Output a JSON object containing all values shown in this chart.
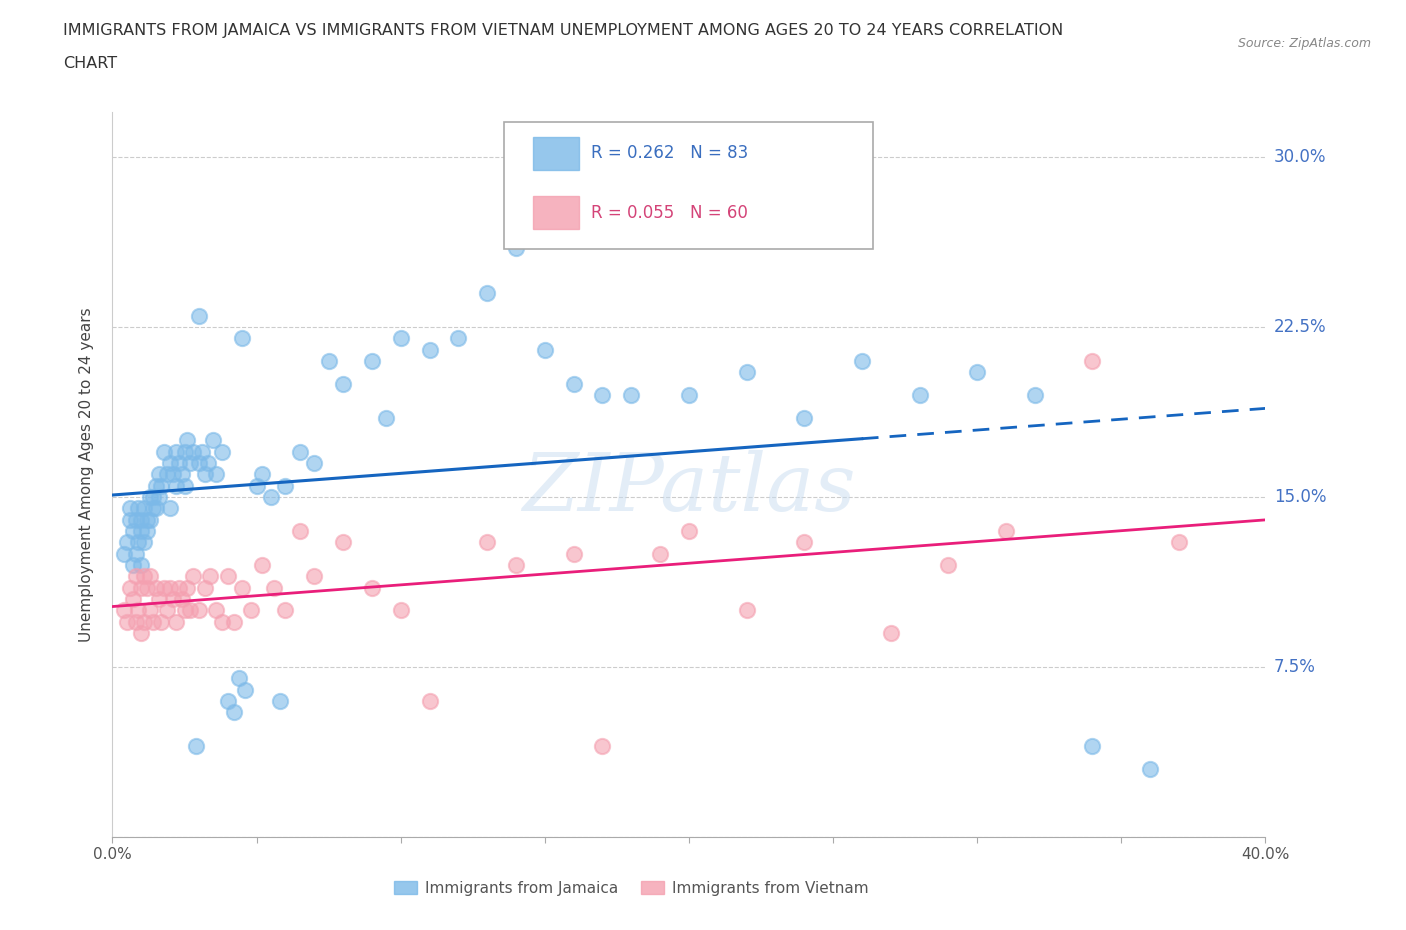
{
  "title_line1": "IMMIGRANTS FROM JAMAICA VS IMMIGRANTS FROM VIETNAM UNEMPLOYMENT AMONG AGES 20 TO 24 YEARS CORRELATION",
  "title_line2": "CHART",
  "source": "Source: ZipAtlas.com",
  "ylabel": "Unemployment Among Ages 20 to 24 years",
  "xlim": [
    0.0,
    0.4
  ],
  "ylim": [
    0.0,
    0.32
  ],
  "xticks": [
    0.0,
    0.05,
    0.1,
    0.15,
    0.2,
    0.25,
    0.3,
    0.35,
    0.4
  ],
  "yticks": [
    0.0,
    0.075,
    0.15,
    0.225,
    0.3
  ],
  "ytick_labels": [
    "",
    "7.5%",
    "15.0%",
    "22.5%",
    "30.0%"
  ],
  "jamaica_color": "#7CB9E8",
  "vietnam_color": "#F4A0B0",
  "jamaica_line_color": "#1565C0",
  "vietnam_line_color": "#E91E7A",
  "jamaica_legend": "Immigrants from Jamaica",
  "vietnam_legend": "Immigrants from Vietnam",
  "watermark": "ZIPatlas",
  "jamaica_scatter_x": [
    0.004,
    0.005,
    0.006,
    0.006,
    0.007,
    0.007,
    0.008,
    0.008,
    0.009,
    0.009,
    0.01,
    0.01,
    0.01,
    0.011,
    0.011,
    0.012,
    0.012,
    0.013,
    0.013,
    0.014,
    0.014,
    0.015,
    0.015,
    0.016,
    0.016,
    0.017,
    0.018,
    0.019,
    0.02,
    0.02,
    0.021,
    0.022,
    0.022,
    0.023,
    0.024,
    0.025,
    0.025,
    0.026,
    0.027,
    0.028,
    0.029,
    0.03,
    0.031,
    0.032,
    0.033,
    0.035,
    0.036,
    0.038,
    0.04,
    0.042,
    0.044,
    0.046,
    0.05,
    0.052,
    0.055,
    0.058,
    0.06,
    0.065,
    0.07,
    0.075,
    0.08,
    0.09,
    0.095,
    0.1,
    0.11,
    0.12,
    0.13,
    0.14,
    0.16,
    0.17,
    0.18,
    0.2,
    0.22,
    0.24,
    0.26,
    0.28,
    0.3,
    0.32,
    0.34,
    0.36,
    0.03,
    0.045,
    0.15
  ],
  "jamaica_scatter_y": [
    0.125,
    0.13,
    0.14,
    0.145,
    0.12,
    0.135,
    0.14,
    0.125,
    0.145,
    0.13,
    0.135,
    0.14,
    0.12,
    0.145,
    0.13,
    0.14,
    0.135,
    0.15,
    0.14,
    0.145,
    0.15,
    0.155,
    0.145,
    0.16,
    0.15,
    0.155,
    0.17,
    0.16,
    0.165,
    0.145,
    0.16,
    0.155,
    0.17,
    0.165,
    0.16,
    0.17,
    0.155,
    0.175,
    0.165,
    0.17,
    0.04,
    0.165,
    0.17,
    0.16,
    0.165,
    0.175,
    0.16,
    0.17,
    0.06,
    0.055,
    0.07,
    0.065,
    0.155,
    0.16,
    0.15,
    0.06,
    0.155,
    0.17,
    0.165,
    0.21,
    0.2,
    0.21,
    0.185,
    0.22,
    0.215,
    0.22,
    0.24,
    0.26,
    0.2,
    0.195,
    0.195,
    0.195,
    0.205,
    0.185,
    0.21,
    0.195,
    0.205,
    0.195,
    0.04,
    0.03,
    0.23,
    0.22,
    0.215
  ],
  "vietnam_scatter_x": [
    0.004,
    0.005,
    0.006,
    0.007,
    0.008,
    0.008,
    0.009,
    0.01,
    0.01,
    0.011,
    0.011,
    0.012,
    0.013,
    0.013,
    0.014,
    0.015,
    0.016,
    0.017,
    0.018,
    0.019,
    0.02,
    0.021,
    0.022,
    0.023,
    0.024,
    0.025,
    0.026,
    0.027,
    0.028,
    0.03,
    0.032,
    0.034,
    0.036,
    0.038,
    0.04,
    0.042,
    0.045,
    0.048,
    0.052,
    0.056,
    0.06,
    0.065,
    0.07,
    0.08,
    0.09,
    0.1,
    0.11,
    0.13,
    0.14,
    0.16,
    0.17,
    0.19,
    0.2,
    0.22,
    0.24,
    0.27,
    0.29,
    0.31,
    0.34,
    0.37
  ],
  "vietnam_scatter_y": [
    0.1,
    0.095,
    0.11,
    0.105,
    0.095,
    0.115,
    0.1,
    0.09,
    0.11,
    0.095,
    0.115,
    0.11,
    0.1,
    0.115,
    0.095,
    0.11,
    0.105,
    0.095,
    0.11,
    0.1,
    0.11,
    0.105,
    0.095,
    0.11,
    0.105,
    0.1,
    0.11,
    0.1,
    0.115,
    0.1,
    0.11,
    0.115,
    0.1,
    0.095,
    0.115,
    0.095,
    0.11,
    0.1,
    0.12,
    0.11,
    0.1,
    0.135,
    0.115,
    0.13,
    0.11,
    0.1,
    0.06,
    0.13,
    0.12,
    0.125,
    0.04,
    0.125,
    0.135,
    0.1,
    0.13,
    0.09,
    0.12,
    0.135,
    0.21,
    0.13
  ]
}
